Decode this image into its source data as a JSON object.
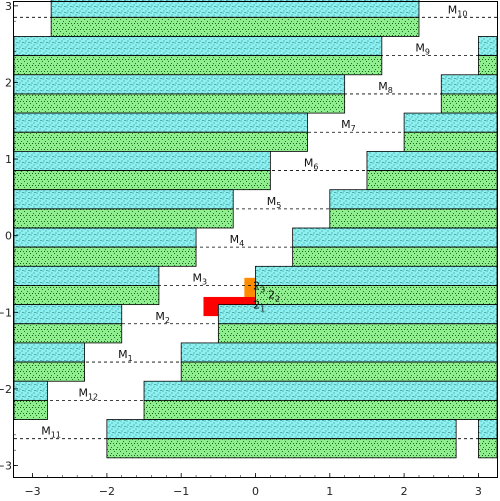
{
  "chart_data": {
    "type": "diagram",
    "title": "",
    "xlabel": "",
    "ylabel": "",
    "xlim": [
      -3.25,
      3.25
    ],
    "ylim": [
      -3.15,
      3.05
    ],
    "x_ticks": [
      "−3",
      "−2",
      "−1",
      "0",
      "1",
      "2",
      "3"
    ],
    "y_ticks": [
      "−3",
      "−2",
      "−1",
      "0",
      "1",
      "2",
      "3"
    ],
    "colors": {
      "cyan_fill": "#8ff0f0",
      "cyan_dot": "#1e8a8a",
      "green_fill": "#90ee90",
      "green_dot": "#1a7a1a",
      "orange": "#ff8c00",
      "red": "#ff0000"
    },
    "strips": [
      {
        "level": 2.85,
        "bars": [
          [
            -2.75,
            2.2
          ]
        ],
        "label_x": 2.72,
        "label": {
          "base": "M",
          "sub": "10",
          "sup": ""
        }
      },
      {
        "level": 2.35,
        "bars": [
          [
            -3.25,
            1.7
          ],
          [
            3.0,
            3.25
          ]
        ],
        "label_x": 2.25,
        "label": {
          "base": "M",
          "sub": "9",
          "sup": ""
        }
      },
      {
        "level": 1.85,
        "bars": [
          [
            -3.25,
            1.2
          ],
          [
            2.5,
            3.25
          ]
        ],
        "label_x": 1.75,
        "label": {
          "base": "M",
          "sub": "8",
          "sup": ""
        }
      },
      {
        "level": 1.35,
        "bars": [
          [
            -3.25,
            0.7
          ],
          [
            2.0,
            3.25
          ]
        ],
        "label_x": 1.25,
        "label": {
          "base": "M",
          "sub": "7",
          "sup": ""
        }
      },
      {
        "level": 0.85,
        "bars": [
          [
            -3.25,
            0.2
          ],
          [
            1.5,
            3.25
          ]
        ],
        "label_x": 0.75,
        "label": {
          "base": "M",
          "sub": "6",
          "sup": ""
        }
      },
      {
        "level": 0.35,
        "bars": [
          [
            -3.25,
            -0.3
          ],
          [
            1.0,
            3.25
          ]
        ],
        "label_x": 0.25,
        "label": {
          "base": "M",
          "sub": "5",
          "sup": ""
        }
      },
      {
        "level": -0.15,
        "bars": [
          [
            -3.25,
            -0.8
          ],
          [
            0.5,
            3.25
          ]
        ],
        "label_x": -0.25,
        "label": {
          "base": "M",
          "sub": "4",
          "sup": ""
        }
      },
      {
        "level": -0.65,
        "bars": [
          [
            -3.25,
            -1.3
          ],
          [
            0.0,
            3.25
          ]
        ],
        "label_x": -0.75,
        "label": {
          "base": "M",
          "sub": "3",
          "sup": ""
        }
      },
      {
        "level": -1.15,
        "bars": [
          [
            -3.25,
            -1.8
          ],
          [
            -0.5,
            3.25
          ]
        ],
        "label_x": -1.25,
        "label": {
          "base": "M",
          "sub": "2",
          "sup": ""
        }
      },
      {
        "level": -1.65,
        "bars": [
          [
            -3.25,
            -2.3
          ],
          [
            -1.0,
            3.25
          ]
        ],
        "label_x": -1.75,
        "label": {
          "base": "M",
          "sub": "1",
          "sup": ""
        }
      },
      {
        "level": -2.15,
        "bars": [
          [
            -3.25,
            -2.8
          ],
          [
            -1.5,
            3.25
          ]
        ],
        "label_x": -2.25,
        "label": {
          "base": "M",
          "sub": "12",
          "sup": ""
        }
      },
      {
        "level": -2.65,
        "bars": [
          [
            -2.0,
            2.7
          ],
          [
            3.0,
            3.25
          ]
        ],
        "label_x": -2.75,
        "label": {
          "base": "M",
          "sub": "11",
          "sup": ""
        }
      }
    ],
    "solid_bands": [
      {
        "color": "orange",
        "y_top": -0.55,
        "y_bottom": -0.8,
        "bars": [
          [
            -3.25,
            -1.4
          ],
          [
            -0.15,
            3.25
          ]
        ]
      },
      {
        "color": "red",
        "y_top": -0.8,
        "y_bottom": -1.05,
        "bars": [
          [
            -3.25,
            -2.2
          ],
          [
            -0.7,
            3.25
          ]
        ]
      }
    ],
    "band_labels": [
      {
        "x": 0.05,
        "y": -0.65,
        "base": "2",
        "sub": "3",
        "sup": ""
      },
      {
        "x": 0.25,
        "y": -0.77,
        "base": "2",
        "sub": "2",
        "sup": ""
      },
      {
        "x": 0.05,
        "y": -0.9,
        "base": "2",
        "sub": "1",
        "sup": ""
      }
    ]
  }
}
